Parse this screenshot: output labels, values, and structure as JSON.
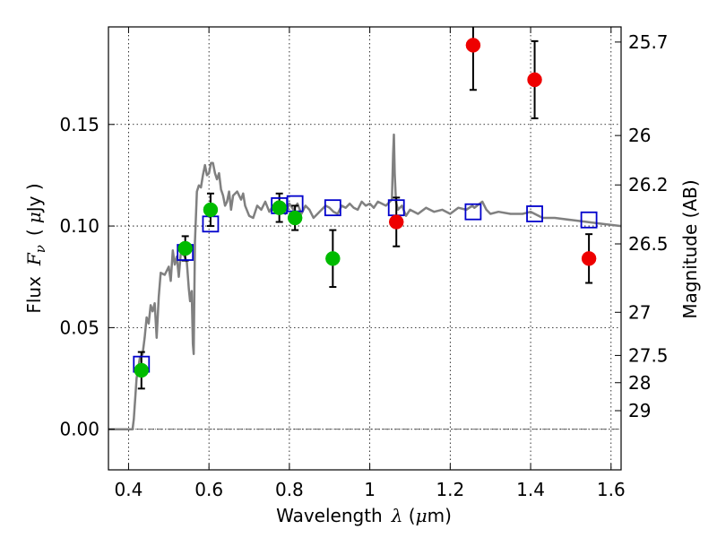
{
  "chart_data": {
    "type": "scatter",
    "title": "",
    "xlabel": "Wavelength",
    "xlabel_symbol": "λ",
    "xlabel_unit_open": " (",
    "xlabel_unit_mu": "μ",
    "xlabel_unit_rest": "m)",
    "ylabel": "Flux",
    "ylabel_symbol": "F",
    "ylabel_sub": "ν",
    "ylabel_unit_open": "(",
    "ylabel_unit_mu": "μ",
    "ylabel_unit_rest": "Jy )",
    "y2label": "Magnitude (AB)",
    "xlim": [
      0.35,
      1.625
    ],
    "ylim": [
      -0.02,
      0.198
    ],
    "grid": true,
    "x_ticks": [
      0.4,
      0.6,
      0.8,
      1.0,
      1.2,
      1.4,
      1.6
    ],
    "x_tick_labels": [
      "0.4",
      "0.6",
      "0.8",
      "1",
      "1.2",
      "1.4",
      "1.6"
    ],
    "y_ticks": [
      0.0,
      0.05,
      0.1,
      0.15
    ],
    "y_tick_labels": [
      "0.00",
      "0.05",
      "0.10",
      "0.15"
    ],
    "mag_ticks": [
      25.7,
      26,
      26.2,
      26.5,
      27,
      27.5,
      28,
      29
    ],
    "mag_tick_labels": [
      "25.7",
      "26",
      "26.2",
      "26.5",
      "27",
      "27.5",
      "28",
      "29"
    ],
    "colors": {
      "green": "#00bb00",
      "red": "#ee0000",
      "model_squares": "#0000cc",
      "sed_line": "#808080",
      "zero_line": "#555555"
    },
    "series": [
      {
        "name": "model-sed",
        "kind": "line",
        "points": [
          [
            0.35,
            0.0
          ],
          [
            0.4,
            0.0
          ],
          [
            0.41,
            0.0
          ],
          [
            0.413,
            0.005
          ],
          [
            0.42,
            0.025
          ],
          [
            0.428,
            0.035
          ],
          [
            0.435,
            0.037
          ],
          [
            0.44,
            0.045
          ],
          [
            0.445,
            0.055
          ],
          [
            0.45,
            0.052
          ],
          [
            0.455,
            0.061
          ],
          [
            0.46,
            0.058
          ],
          [
            0.465,
            0.062
          ],
          [
            0.47,
            0.045
          ],
          [
            0.475,
            0.065
          ],
          [
            0.48,
            0.077
          ],
          [
            0.49,
            0.076
          ],
          [
            0.5,
            0.08
          ],
          [
            0.505,
            0.073
          ],
          [
            0.51,
            0.088
          ],
          [
            0.515,
            0.081
          ],
          [
            0.52,
            0.085
          ],
          [
            0.525,
            0.075
          ],
          [
            0.53,
            0.087
          ],
          [
            0.535,
            0.086
          ],
          [
            0.54,
            0.085
          ],
          [
            0.545,
            0.082
          ],
          [
            0.55,
            0.069
          ],
          [
            0.553,
            0.063
          ],
          [
            0.557,
            0.068
          ],
          [
            0.56,
            0.042
          ],
          [
            0.562,
            0.037
          ],
          [
            0.565,
            0.092
          ],
          [
            0.57,
            0.117
          ],
          [
            0.575,
            0.12
          ],
          [
            0.58,
            0.119
          ],
          [
            0.585,
            0.125
          ],
          [
            0.59,
            0.13
          ],
          [
            0.595,
            0.125
          ],
          [
            0.6,
            0.126
          ],
          [
            0.605,
            0.131
          ],
          [
            0.61,
            0.131
          ],
          [
            0.615,
            0.126
          ],
          [
            0.62,
            0.123
          ],
          [
            0.625,
            0.126
          ],
          [
            0.63,
            0.118
          ],
          [
            0.635,
            0.115
          ],
          [
            0.64,
            0.11
          ],
          [
            0.645,
            0.112
          ],
          [
            0.65,
            0.117
          ],
          [
            0.655,
            0.108
          ],
          [
            0.66,
            0.115
          ],
          [
            0.67,
            0.117
          ],
          [
            0.68,
            0.113
          ],
          [
            0.685,
            0.116
          ],
          [
            0.69,
            0.11
          ],
          [
            0.7,
            0.105
          ],
          [
            0.71,
            0.104
          ],
          [
            0.72,
            0.11
          ],
          [
            0.73,
            0.108
          ],
          [
            0.74,
            0.112
          ],
          [
            0.75,
            0.107
          ],
          [
            0.76,
            0.11
          ],
          [
            0.77,
            0.112
          ],
          [
            0.78,
            0.108
          ],
          [
            0.79,
            0.106
          ],
          [
            0.8,
            0.111
          ],
          [
            0.81,
            0.108
          ],
          [
            0.82,
            0.111
          ],
          [
            0.83,
            0.106
          ],
          [
            0.84,
            0.11
          ],
          [
            0.85,
            0.108
          ],
          [
            0.86,
            0.104
          ],
          [
            0.87,
            0.106
          ],
          [
            0.88,
            0.108
          ],
          [
            0.89,
            0.11
          ],
          [
            0.9,
            0.109
          ],
          [
            0.91,
            0.107
          ],
          [
            0.92,
            0.106
          ],
          [
            0.93,
            0.11
          ],
          [
            0.94,
            0.109
          ],
          [
            0.95,
            0.111
          ],
          [
            0.96,
            0.109
          ],
          [
            0.97,
            0.108
          ],
          [
            0.98,
            0.112
          ],
          [
            0.99,
            0.11
          ],
          [
            1.0,
            0.111
          ],
          [
            1.01,
            0.109
          ],
          [
            1.02,
            0.112
          ],
          [
            1.03,
            0.111
          ],
          [
            1.04,
            0.11
          ],
          [
            1.05,
            0.112
          ],
          [
            1.055,
            0.113
          ],
          [
            1.058,
            0.135
          ],
          [
            1.06,
            0.145
          ],
          [
            1.062,
            0.126
          ],
          [
            1.065,
            0.112
          ],
          [
            1.07,
            0.108
          ],
          [
            1.08,
            0.11
          ],
          [
            1.09,
            0.105
          ],
          [
            1.1,
            0.108
          ],
          [
            1.12,
            0.106
          ],
          [
            1.14,
            0.109
          ],
          [
            1.16,
            0.107
          ],
          [
            1.18,
            0.108
          ],
          [
            1.2,
            0.106
          ],
          [
            1.22,
            0.109
          ],
          [
            1.24,
            0.108
          ],
          [
            1.255,
            0.11
          ],
          [
            1.26,
            0.109
          ],
          [
            1.28,
            0.112
          ],
          [
            1.29,
            0.108
          ],
          [
            1.3,
            0.106
          ],
          [
            1.32,
            0.107
          ],
          [
            1.35,
            0.106
          ],
          [
            1.38,
            0.106
          ],
          [
            1.4,
            0.107
          ],
          [
            1.43,
            0.104
          ],
          [
            1.46,
            0.104
          ],
          [
            1.5,
            0.103
          ],
          [
            1.54,
            0.102
          ],
          [
            1.58,
            0.101
          ],
          [
            1.625,
            0.1
          ]
        ]
      },
      {
        "name": "green-photometry",
        "kind": "points",
        "color": "green",
        "points": [
          {
            "x": 0.432,
            "y": 0.029,
            "err": 0.009
          },
          {
            "x": 0.541,
            "y": 0.089,
            "err": 0.006
          },
          {
            "x": 0.604,
            "y": 0.108,
            "err": 0.008
          },
          {
            "x": 0.775,
            "y": 0.109,
            "err": 0.007
          },
          {
            "x": 0.814,
            "y": 0.104,
            "err": 0.006
          },
          {
            "x": 0.908,
            "y": 0.084,
            "err": 0.014
          }
        ]
      },
      {
        "name": "red-photometry",
        "kind": "points",
        "color": "red",
        "points": [
          {
            "x": 1.066,
            "y": 0.102,
            "err": 0.012
          },
          {
            "x": 1.257,
            "y": 0.189,
            "err": 0.022
          },
          {
            "x": 1.41,
            "y": 0.172,
            "err": 0.019
          },
          {
            "x": 1.545,
            "y": 0.084,
            "err": 0.012
          }
        ]
      },
      {
        "name": "model-band-fluxes",
        "kind": "squares",
        "color": "model_squares",
        "points": [
          {
            "x": 0.432,
            "y": 0.032
          },
          {
            "x": 0.541,
            "y": 0.087
          },
          {
            "x": 0.604,
            "y": 0.101
          },
          {
            "x": 0.775,
            "y": 0.11
          },
          {
            "x": 0.814,
            "y": 0.111
          },
          {
            "x": 0.908,
            "y": 0.109
          },
          {
            "x": 1.066,
            "y": 0.109
          },
          {
            "x": 1.257,
            "y": 0.107
          },
          {
            "x": 1.41,
            "y": 0.106
          },
          {
            "x": 1.545,
            "y": 0.103
          }
        ]
      }
    ]
  }
}
